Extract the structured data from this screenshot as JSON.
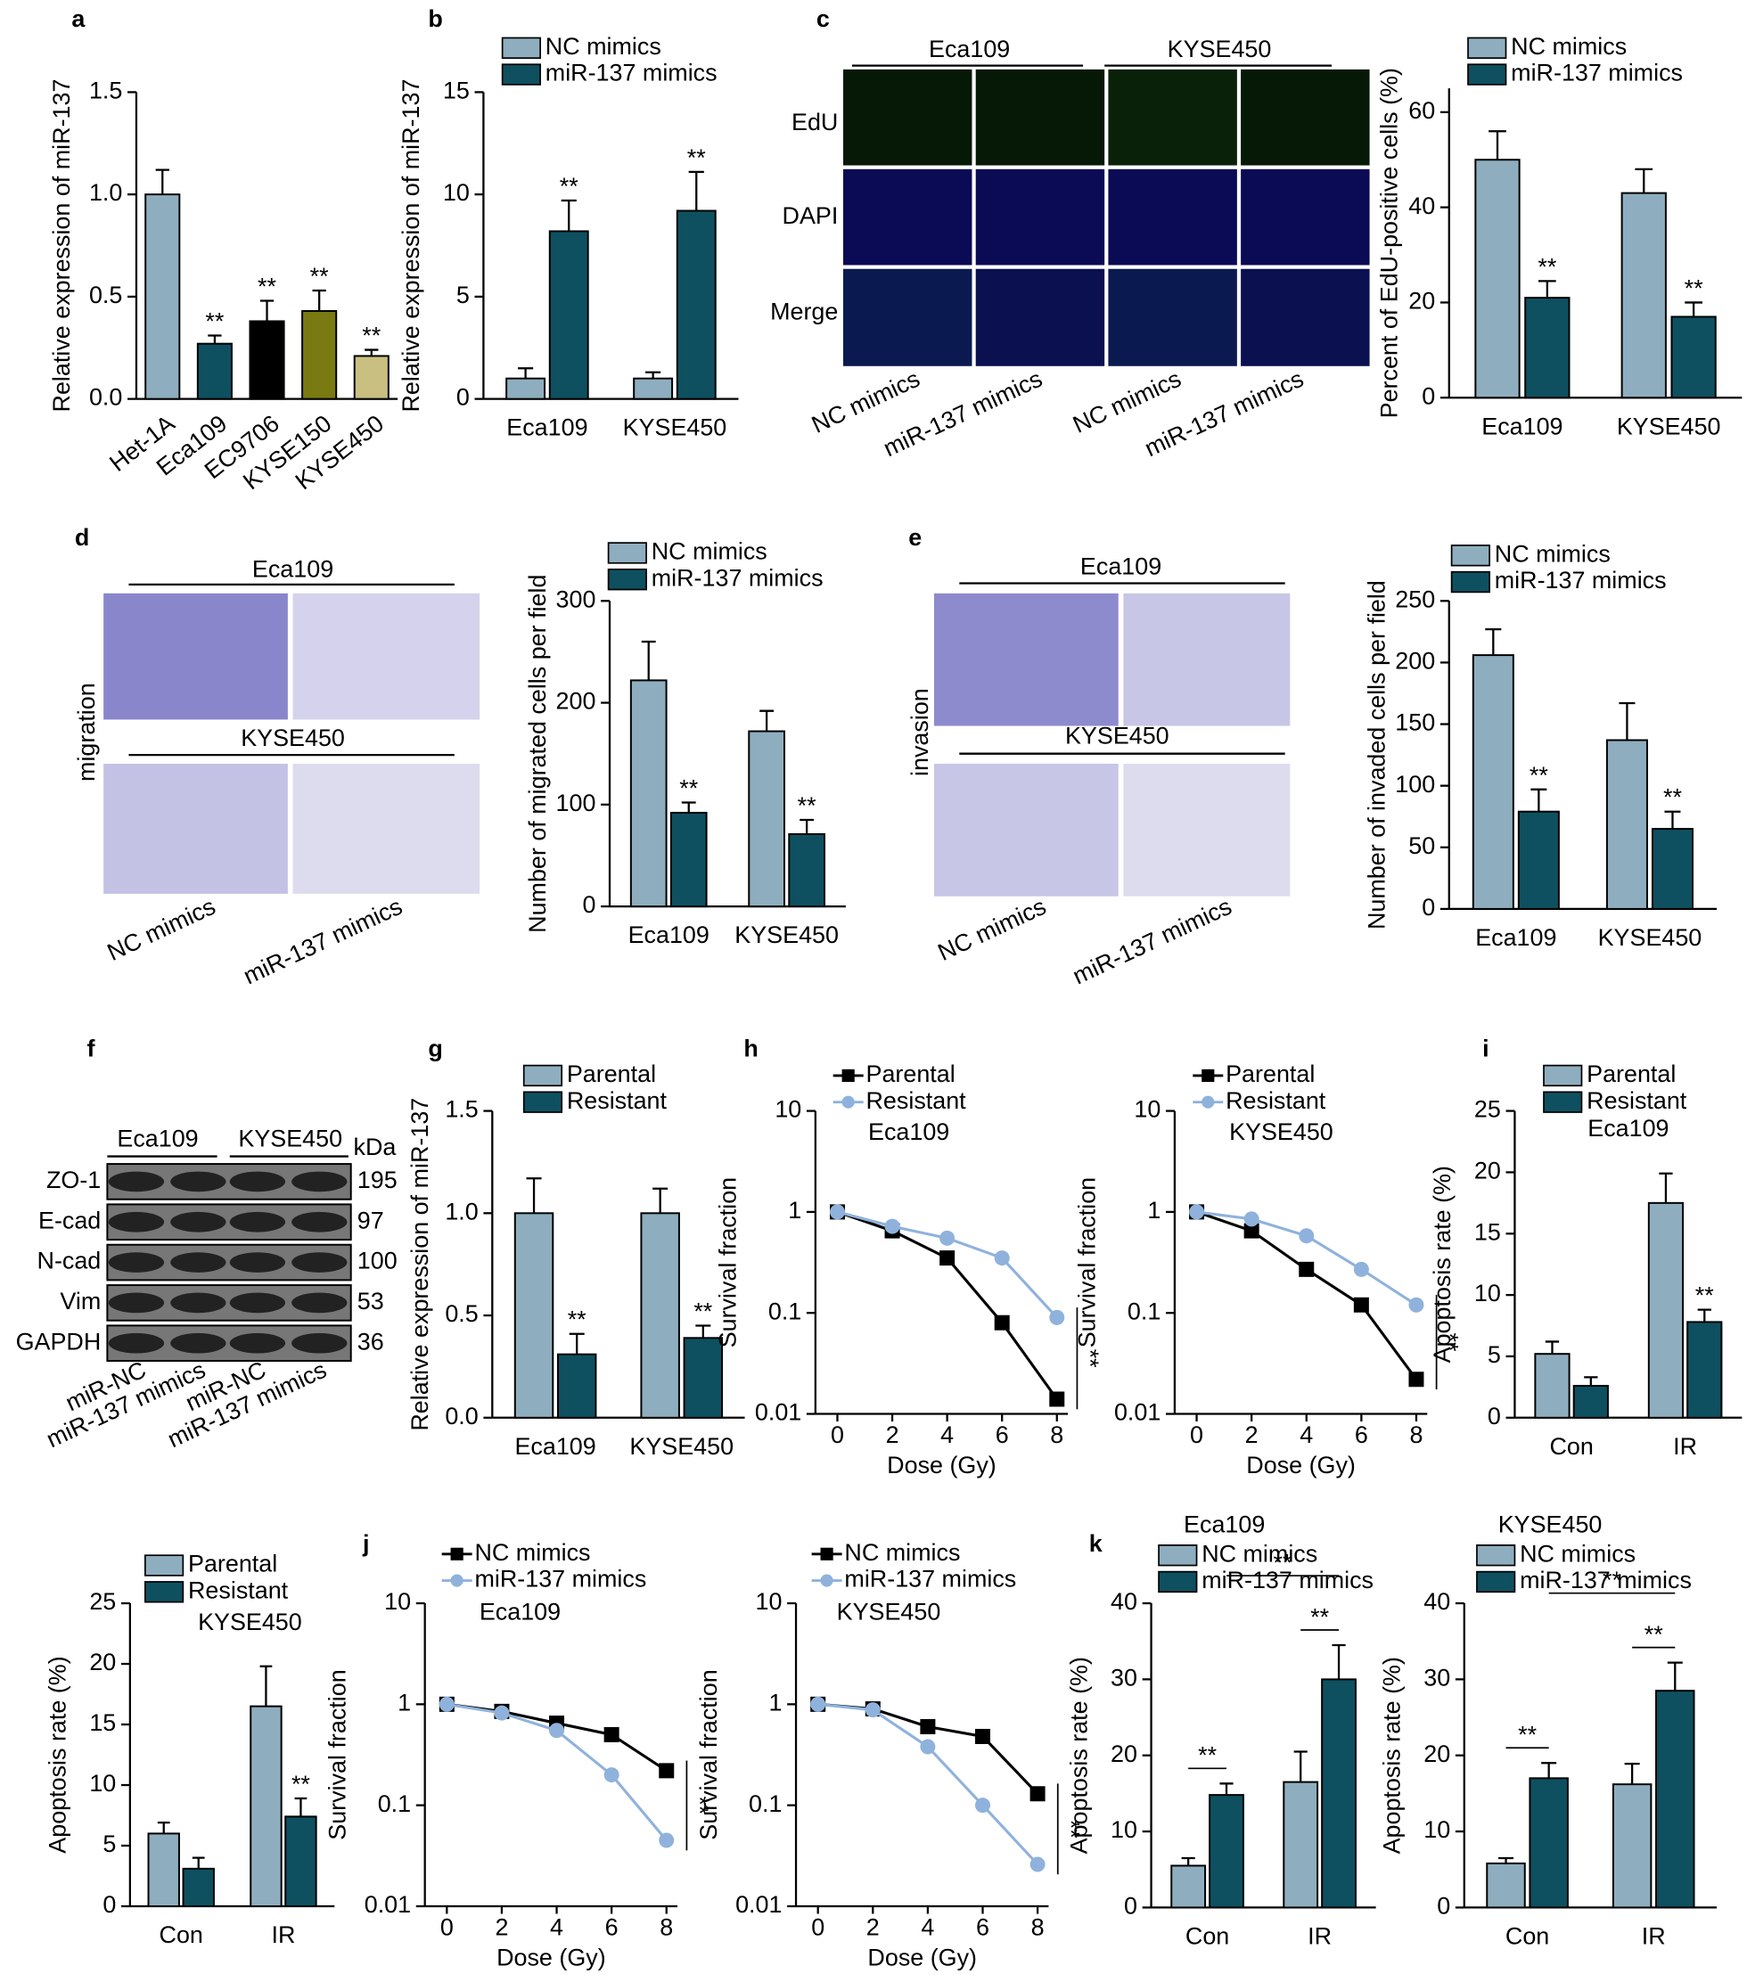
{
  "figure": {
    "panels": [
      "a",
      "b",
      "c",
      "d",
      "e",
      "f",
      "g",
      "h",
      "i",
      "j",
      "k"
    ],
    "c": {
      "groups": [
        "Eca109",
        "KYSE450"
      ],
      "rows": [
        "EdU",
        "DAPI",
        "Merge"
      ],
      "samples": [
        "NC mimics",
        "miR-137 mimics",
        "NC mimics",
        "miR-137 mimics"
      ]
    },
    "d": {
      "groups": [
        "Eca109",
        "KYSE450"
      ],
      "side": "migration",
      "samples": [
        "NC mimics",
        "miR-137 mimics"
      ]
    },
    "e": {
      "groups": [
        "Eca109",
        "KYSE450"
      ],
      "side": "invasion",
      "samples": [
        "NC mimics",
        "miR-137 mimics"
      ]
    },
    "f": {
      "groups": [
        "Eca109",
        "KYSE450"
      ],
      "unit": "kDa",
      "rows": [
        {
          "protein": "ZO-1",
          "kda": 195
        },
        {
          "protein": "E-cad",
          "kda": 97
        },
        {
          "protein": "N-cad",
          "kda": 100
        },
        {
          "protein": "Vim",
          "kda": 53
        },
        {
          "protein": "GAPDH",
          "kda": 36
        }
      ],
      "samples": [
        "miR-NC",
        "miR-137 mimics",
        "miR-NC",
        "miR-137 mimics"
      ]
    }
  },
  "chart_data": [
    {
      "type": "bar",
      "ylabel": "Relative expression of miR-137",
      "categories": [
        "Het-1A",
        "Eca109",
        "EC9706",
        "KYSE150",
        "KYSE450"
      ],
      "values": [
        1.0,
        0.27,
        0.38,
        0.43,
        0.21
      ],
      "errors": [
        0.12,
        0.04,
        0.1,
        0.1,
        0.03
      ],
      "colors": [
        "#8eaebf",
        "#0e5060",
        "#000000",
        "#7a7a12",
        "#c9bf80"
      ],
      "significance": [
        null,
        "**",
        "**",
        "**",
        "**"
      ],
      "ylim": [
        0,
        1.5
      ],
      "yticks": [
        {
          "value": 0,
          "label": "0.0"
        },
        {
          "value": 0.5,
          "label": "0.5"
        },
        {
          "value": 1,
          "label": "1.0"
        },
        {
          "value": 1.5,
          "label": "1.5"
        }
      ]
    },
    {
      "type": "bar",
      "ylabel": "Relative expression of miR-137",
      "categories": [
        "Eca109",
        "KYSE450"
      ],
      "series": [
        {
          "name": "NC mimics",
          "color": "#8eaebf",
          "values": [
            1.0,
            1.0
          ],
          "errors": [
            0.5,
            0.3
          ]
        },
        {
          "name": "miR-137 mimics",
          "color": "#0e5060",
          "values": [
            8.2,
            9.2
          ],
          "errors": [
            1.5,
            1.9
          ],
          "significance": [
            "**",
            "**"
          ]
        }
      ],
      "ylim": [
        0,
        15
      ],
      "yticks": [
        0,
        5,
        10,
        15
      ]
    },
    {
      "type": "bar",
      "ylabel": "Percent of EdU-positive cells (%)",
      "categories": [
        "Eca109",
        "KYSE450"
      ],
      "series": [
        {
          "name": "NC mimics",
          "color": "#8eaebf",
          "values": [
            50,
            43
          ],
          "errors": [
            6,
            5
          ]
        },
        {
          "name": "miR-137 mimics",
          "color": "#0e5060",
          "values": [
            21,
            17
          ],
          "errors": [
            3.5,
            3
          ],
          "significance": [
            "**",
            "**"
          ]
        }
      ],
      "ylim": [
        0,
        65
      ],
      "yticks": [
        0,
        20,
        40,
        60
      ]
    },
    {
      "type": "bar",
      "ylabel": "Number of migrated cells per field",
      "categories": [
        "Eca109",
        "KYSE450"
      ],
      "series": [
        {
          "name": "NC mimics",
          "color": "#8eaebf",
          "values": [
            222,
            172
          ],
          "errors": [
            38,
            20
          ]
        },
        {
          "name": "miR-137 mimics",
          "color": "#0e5060",
          "values": [
            92,
            71
          ],
          "errors": [
            10,
            14
          ],
          "significance": [
            "**",
            "**"
          ]
        }
      ],
      "ylim": [
        0,
        300
      ],
      "yticks": [
        0,
        100,
        200,
        300
      ]
    },
    {
      "type": "bar",
      "ylabel": "Number of invaded cells per field",
      "categories": [
        "Eca109",
        "KYSE450"
      ],
      "series": [
        {
          "name": "NC mimics",
          "color": "#8eaebf",
          "values": [
            206,
            137
          ],
          "errors": [
            21,
            30
          ]
        },
        {
          "name": "miR-137 mimics",
          "color": "#0e5060",
          "values": [
            79,
            65
          ],
          "errors": [
            18,
            14
          ],
          "significance": [
            "**",
            "**"
          ]
        }
      ],
      "ylim": [
        0,
        250
      ],
      "yticks": [
        0,
        50,
        100,
        150,
        200,
        250
      ]
    },
    {
      "type": "bar",
      "ylabel": "Relative expression of miR-137",
      "categories": [
        "Eca109",
        "KYSE450"
      ],
      "series": [
        {
          "name": "Parental",
          "color": "#8eaebf",
          "values": [
            1.0,
            1.0
          ],
          "errors": [
            0.17,
            0.12
          ]
        },
        {
          "name": "Resistant",
          "color": "#0e5060",
          "values": [
            0.31,
            0.39
          ],
          "errors": [
            0.1,
            0.06
          ],
          "significance": [
            "**",
            "**"
          ]
        }
      ],
      "ylim": [
        0,
        1.5
      ],
      "yticks": [
        {
          "value": 0,
          "label": "0.0"
        },
        {
          "value": 0.5,
          "label": "0.5"
        },
        {
          "value": 1,
          "label": "1.0"
        },
        {
          "value": 1.5,
          "label": "1.5"
        }
      ]
    },
    {
      "type": "line",
      "subtitle": "Eca109",
      "xlabel": "Dose (Gy)",
      "ylabel": "Survival fraction",
      "annotation": "**",
      "log": true,
      "x": [
        0,
        2,
        4,
        6,
        8
      ],
      "series": [
        {
          "name": "Parental",
          "color": "#000000",
          "marker": "square",
          "values": [
            1,
            0.65,
            0.35,
            0.08,
            0.014
          ]
        },
        {
          "name": "Resistant",
          "color": "#8fb2dc",
          "marker": "circle",
          "values": [
            1,
            0.72,
            0.55,
            0.35,
            0.09
          ]
        }
      ],
      "xlim": [
        -0.8,
        8.4
      ],
      "xticks": [
        0,
        2,
        4,
        6,
        8
      ],
      "ylim": [
        0.01,
        10
      ],
      "yticks": [
        0.01,
        0.1,
        1,
        10
      ]
    },
    {
      "type": "line",
      "subtitle": "KYSE450",
      "xlabel": "Dose (Gy)",
      "ylabel": "Survival fraction",
      "annotation": "**",
      "log": true,
      "x": [
        0,
        2,
        4,
        6,
        8
      ],
      "series": [
        {
          "name": "Parental",
          "color": "#000000",
          "marker": "square",
          "values": [
            1,
            0.65,
            0.27,
            0.12,
            0.022
          ]
        },
        {
          "name": "Resistant",
          "color": "#8fb2dc",
          "marker": "circle",
          "values": [
            1,
            0.85,
            0.58,
            0.27,
            0.12
          ]
        }
      ],
      "xlim": [
        -0.8,
        8.4
      ],
      "xticks": [
        0,
        2,
        4,
        6,
        8
      ],
      "ylim": [
        0.01,
        10
      ],
      "yticks": [
        0.01,
        0.1,
        1,
        10
      ]
    },
    {
      "type": "bar",
      "subtitle": "Eca109",
      "ylabel": "Apoptosis rate (%)",
      "categories": [
        "Con",
        "IR"
      ],
      "series": [
        {
          "name": "Parental",
          "color": "#8eaebf",
          "values": [
            5.2,
            17.5
          ],
          "errors": [
            1,
            2.4
          ]
        },
        {
          "name": "Resistant",
          "color": "#0e5060",
          "values": [
            2.6,
            7.8
          ],
          "errors": [
            0.7,
            1
          ],
          "significance": [
            null,
            "**"
          ]
        }
      ],
      "ylim": [
        0,
        25
      ],
      "yticks": [
        0,
        5,
        10,
        15,
        20,
        25
      ]
    },
    {
      "type": "bar",
      "subtitle": "KYSE450",
      "ylabel": "Apoptosis rate (%)",
      "categories": [
        "Con",
        "IR"
      ],
      "series": [
        {
          "name": "Parental",
          "color": "#8eaebf",
          "values": [
            6,
            16.5
          ],
          "errors": [
            0.9,
            3.3
          ]
        },
        {
          "name": "Resistant",
          "color": "#0e5060",
          "values": [
            3.1,
            7.4
          ],
          "errors": [
            0.9,
            1.5
          ],
          "significance": [
            null,
            "**"
          ]
        }
      ],
      "ylim": [
        0,
        25
      ],
      "yticks": [
        0,
        5,
        10,
        15,
        20,
        25
      ]
    },
    {
      "type": "line",
      "subtitle": "Eca109",
      "xlabel": "Dose (Gy)",
      "ylabel": "Survival fraction",
      "annotation": "**",
      "log": true,
      "x": [
        0,
        2,
        4,
        6,
        8
      ],
      "series": [
        {
          "name": "NC mimics",
          "color": "#000000",
          "marker": "square",
          "values": [
            1,
            0.85,
            0.65,
            0.5,
            0.22
          ]
        },
        {
          "name": "miR-137 mimics",
          "color": "#8fb2dc",
          "marker": "circle",
          "values": [
            1,
            0.82,
            0.55,
            0.2,
            0.045
          ]
        }
      ],
      "xlim": [
        -0.8,
        8.4
      ],
      "xticks": [
        0,
        2,
        4,
        6,
        8
      ],
      "ylim": [
        0.01,
        10
      ],
      "yticks": [
        0.01,
        0.1,
        1,
        10
      ]
    },
    {
      "type": "line",
      "subtitle": "KYSE450",
      "xlabel": "Dose (Gy)",
      "ylabel": "Survival fraction",
      "annotation": "**",
      "log": true,
      "x": [
        0,
        2,
        4,
        6,
        8
      ],
      "series": [
        {
          "name": "NC mimics",
          "color": "#000000",
          "marker": "square",
          "values": [
            1,
            0.9,
            0.6,
            0.48,
            0.13
          ]
        },
        {
          "name": "miR-137 mimics",
          "color": "#8fb2dc",
          "marker": "circle",
          "values": [
            1,
            0.88,
            0.38,
            0.1,
            0.026
          ]
        }
      ],
      "xlim": [
        -0.8,
        8.4
      ],
      "xticks": [
        0,
        2,
        4,
        6,
        8
      ],
      "ylim": [
        0.01,
        10
      ],
      "yticks": [
        0.01,
        0.1,
        1,
        10
      ]
    },
    {
      "type": "bar",
      "subtitle": "Eca109",
      "ylabel": "Apoptosis rate (%)",
      "categories": [
        "Con",
        "IR"
      ],
      "comparisons": [
        "**",
        "**",
        "**"
      ],
      "series": [
        {
          "name": "NC mimics",
          "color": "#8eaebf",
          "values": [
            5.5,
            16.5
          ],
          "errors": [
            1,
            4
          ]
        },
        {
          "name": "miR-137 mimics",
          "color": "#0e5060",
          "values": [
            14.8,
            30
          ],
          "errors": [
            1.5,
            4.5
          ]
        }
      ],
      "ylim": [
        0,
        40
      ],
      "yticks": [
        0,
        10,
        20,
        30,
        40
      ]
    },
    {
      "type": "bar",
      "subtitle": "KYSE450",
      "ylabel": "Apoptosis rate (%)",
      "categories": [
        "Con",
        "IR"
      ],
      "comparisons": [
        "**",
        "**",
        "**"
      ],
      "series": [
        {
          "name": "NC mimics",
          "color": "#8eaebf",
          "values": [
            5.8,
            16.2
          ],
          "errors": [
            0.7,
            2.7
          ]
        },
        {
          "name": "miR-137 mimics",
          "color": "#0e5060",
          "values": [
            17,
            28.5
          ],
          "errors": [
            2,
            3.7
          ]
        }
      ],
      "ylim": [
        0,
        40
      ],
      "yticks": [
        0,
        10,
        20,
        30,
        40
      ]
    }
  ]
}
